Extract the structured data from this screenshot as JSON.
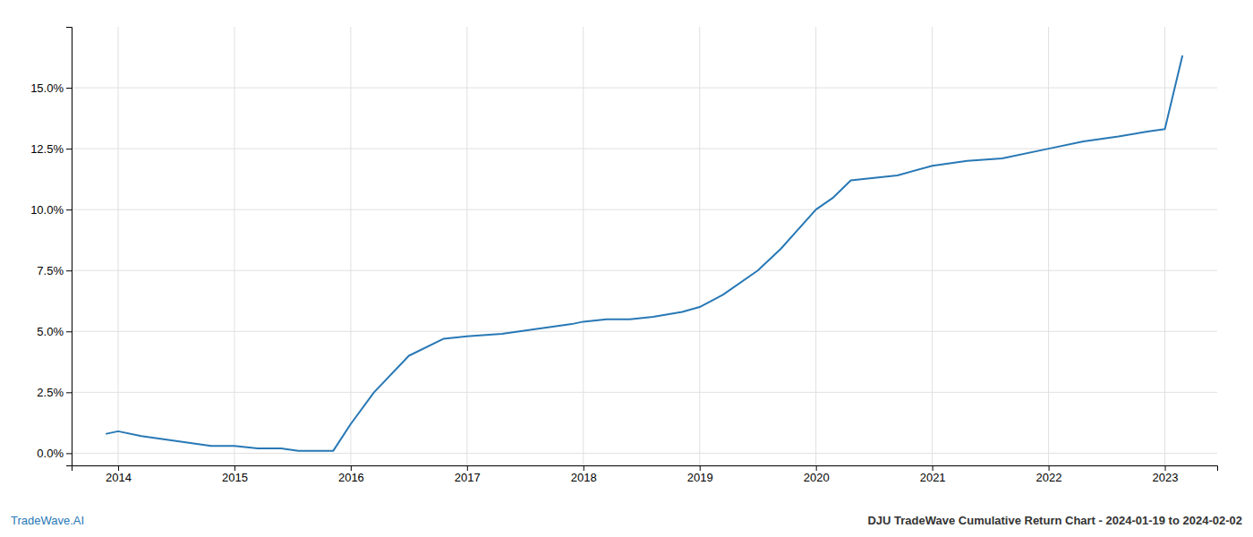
{
  "chart_data": {
    "type": "line",
    "x": [
      2013.9,
      2014.0,
      2014.2,
      2014.5,
      2014.8,
      2015.0,
      2015.2,
      2015.4,
      2015.55,
      2015.7,
      2015.85,
      2016.0,
      2016.2,
      2016.5,
      2016.8,
      2017.0,
      2017.3,
      2017.6,
      2017.9,
      2018.0,
      2018.2,
      2018.4,
      2018.6,
      2018.85,
      2019.0,
      2019.2,
      2019.5,
      2019.7,
      2019.85,
      2020.0,
      2020.15,
      2020.3,
      2020.5,
      2020.7,
      2021.0,
      2021.3,
      2021.6,
      2022.0,
      2022.3,
      2022.6,
      2022.85,
      2023.0,
      2023.15
    ],
    "values": [
      0.008,
      0.009,
      0.007,
      0.005,
      0.003,
      0.003,
      0.002,
      0.002,
      0.001,
      0.001,
      0.001,
      0.012,
      0.025,
      0.04,
      0.047,
      0.048,
      0.049,
      0.051,
      0.053,
      0.054,
      0.055,
      0.055,
      0.056,
      0.058,
      0.06,
      0.065,
      0.075,
      0.084,
      0.092,
      0.1,
      0.105,
      0.112,
      0.113,
      0.114,
      0.118,
      0.12,
      0.121,
      0.125,
      0.128,
      0.13,
      0.132,
      0.133,
      0.163
    ],
    "color": "#2878b5",
    "xlim": [
      2013.6,
      2023.45
    ],
    "ylim": [
      -0.005,
      0.175
    ],
    "xticks": [
      2014,
      2015,
      2016,
      2017,
      2018,
      2019,
      2020,
      2021,
      2022,
      2023
    ],
    "yticks": [
      {
        "value": 0.0,
        "label": "0.0%"
      },
      {
        "value": 0.025,
        "label": "2.5%"
      },
      {
        "value": 0.05,
        "label": "5.0%"
      },
      {
        "value": 0.075,
        "label": "7.5%"
      },
      {
        "value": 0.1,
        "label": "10.0%"
      },
      {
        "value": 0.125,
        "label": "12.5%"
      },
      {
        "value": 0.15,
        "label": "15.0%"
      }
    ],
    "grid": true,
    "annotations": [
      "TradeWave.AI",
      "DJU TradeWave Cumulative Return Chart - 2024-01-19 to 2024-02-02"
    ]
  }
}
